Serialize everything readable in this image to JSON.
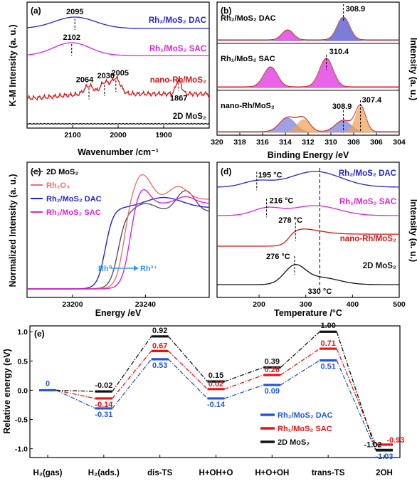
{
  "chart_data": [
    {
      "panel": "a",
      "type": "line",
      "panel_label": "(a)",
      "xlabel": "Wavenumber /cm⁻¹",
      "ylabel": "K-M Intensity (a. u.)",
      "xlim": [
        2200,
        1800
      ],
      "xticks": [
        "2100",
        "2000",
        "1900"
      ],
      "series": [
        {
          "name": "Rh₂/MoS₂ DAC",
          "color": "#2222dd",
          "peaks": [
            {
              "x": 2095,
              "label": "2095"
            }
          ]
        },
        {
          "name": "Rh₁/MoS₂ SAC",
          "color": "#dd22dd",
          "peaks": [
            {
              "x": 2102,
              "label": "2102"
            }
          ]
        },
        {
          "name": "nano-Rh/MoS₂",
          "color": "#dd1111",
          "peaks": [
            {
              "x": 2064,
              "label": "2064"
            },
            {
              "x": 2030,
              "label": "2030"
            },
            {
              "x": 2005,
              "label": "2005"
            },
            {
              "x": 1867,
              "label": "1867"
            }
          ]
        },
        {
          "name": "2D MoS₂",
          "color": "#111111",
          "peaks": []
        }
      ]
    },
    {
      "panel": "b",
      "type": "area",
      "panel_label": "(b)",
      "xlabel": "Binding Energy /eV",
      "ylabel": "Intensity (a. u.)",
      "xlim": [
        320,
        304
      ],
      "xticks": [
        "320",
        "318",
        "316",
        "314",
        "312",
        "310",
        "308",
        "306",
        "304"
      ],
      "subpanels": [
        {
          "name": "Rh₂/MoS₂ DAC",
          "peak_label": "308.9",
          "components": [
            {
              "center": 313.8,
              "color": "#dd22dd"
            },
            {
              "center": 308.9,
              "color": "#4444cc"
            }
          ]
        },
        {
          "name": "Rh₁/MoS₂ SAC",
          "peak_label": "310.4",
          "components": [
            {
              "center": 315.3,
              "color": "#dd22dd"
            },
            {
              "center": 310.4,
              "color": "#dd22dd"
            }
          ]
        },
        {
          "name": "nano-Rh/MoS₂",
          "peak_labels": [
            "308.9",
            "307.4"
          ],
          "components": [
            {
              "center": 313.8,
              "color": "#7777dd"
            },
            {
              "center": 312.4,
              "color": "#f0a050"
            },
            {
              "center": 308.9,
              "color": "#7777dd"
            },
            {
              "center": 307.4,
              "color": "#f0a050"
            }
          ]
        }
      ]
    },
    {
      "panel": "c",
      "type": "line",
      "panel_label": "(c)",
      "xlabel": "Energy /eV",
      "ylabel": "Normalized Intensity (a. u.)",
      "xlim": [
        23175,
        23275
      ],
      "xticks": [
        "23200",
        "23240"
      ],
      "annotation": {
        "from": "Rh⁰",
        "to": "Rh³⁺"
      },
      "series": [
        {
          "name": "2D MoS₂",
          "color": "#555555"
        },
        {
          "name": "Rh₂O₃",
          "color": "#f07070"
        },
        {
          "name": "Rh₂/MoS₂ DAC",
          "color": "#2222dd"
        },
        {
          "name": "Rh₁/MoS₂ SAC",
          "color": "#dd22dd"
        }
      ]
    },
    {
      "panel": "d",
      "type": "line",
      "panel_label": "(d)",
      "xlabel": "Temperature /°C",
      "ylabel": "Intensity (a. u.)",
      "xlim": [
        110,
        500
      ],
      "xticks": [
        "200",
        "300",
        "400",
        "500"
      ],
      "series": [
        {
          "name": "Rh₂/MoS₂ DAC",
          "color": "#2222dd",
          "peak_label": "195 °C",
          "peak_x": 195
        },
        {
          "name": "Rh₁/MoS₂ SAC",
          "color": "#dd22dd",
          "peak_label": "216 °C",
          "peak_x": 216
        },
        {
          "name": "nano-Rh/MoS₂",
          "color": "#dd1111",
          "peak_label": "278 °C",
          "peak_x": 278
        },
        {
          "name": "2D MoS₂",
          "color": "#111111",
          "peak_label": "276 °C",
          "peak_x": 276
        }
      ],
      "shared_label": "330 °C",
      "shared_x": 330
    },
    {
      "panel": "e",
      "type": "line",
      "panel_label": "(e)",
      "ylabel": "Relative energy (eV)",
      "ylim": [
        -1.15,
        1.1
      ],
      "yticks": [
        "1.0",
        "0.5",
        "0.0",
        "-0.5",
        "-1.0"
      ],
      "categories": [
        "H₂(gas)",
        "H₂(ads.)",
        "dis-TS",
        "H+OH+O",
        "H+O+OH",
        "trans-TS",
        "2OH"
      ],
      "start_label": "0",
      "series": [
        {
          "name": "Rh₂/MoS₂ DAC",
          "color": "#2255dd",
          "values": [
            0,
            -0.31,
            0.53,
            -0.14,
            0.09,
            0.51,
            -1.03
          ],
          "labels": [
            "",
            "-0.31",
            "0.53",
            "-0.14",
            "0.09",
            "0.51",
            "-1.03"
          ]
        },
        {
          "name": "Rh₁/MoS₂ SAC",
          "color": "#ee1111",
          "values": [
            0,
            -0.14,
            0.67,
            0.02,
            0.26,
            0.71,
            -0.93
          ],
          "labels": [
            "",
            "-0.14",
            "0.67",
            "0.02",
            "0.26",
            "0.71",
            "-0.93"
          ]
        },
        {
          "name": "2D MoS₂",
          "color": "#111111",
          "values": [
            0,
            -0.02,
            0.92,
            0.15,
            0.39,
            1.0,
            -1.02
          ],
          "labels": [
            "",
            "-0.02",
            "0.92",
            "0.15",
            "0.39",
            "1.00",
            "-1.02"
          ]
        }
      ]
    }
  ]
}
